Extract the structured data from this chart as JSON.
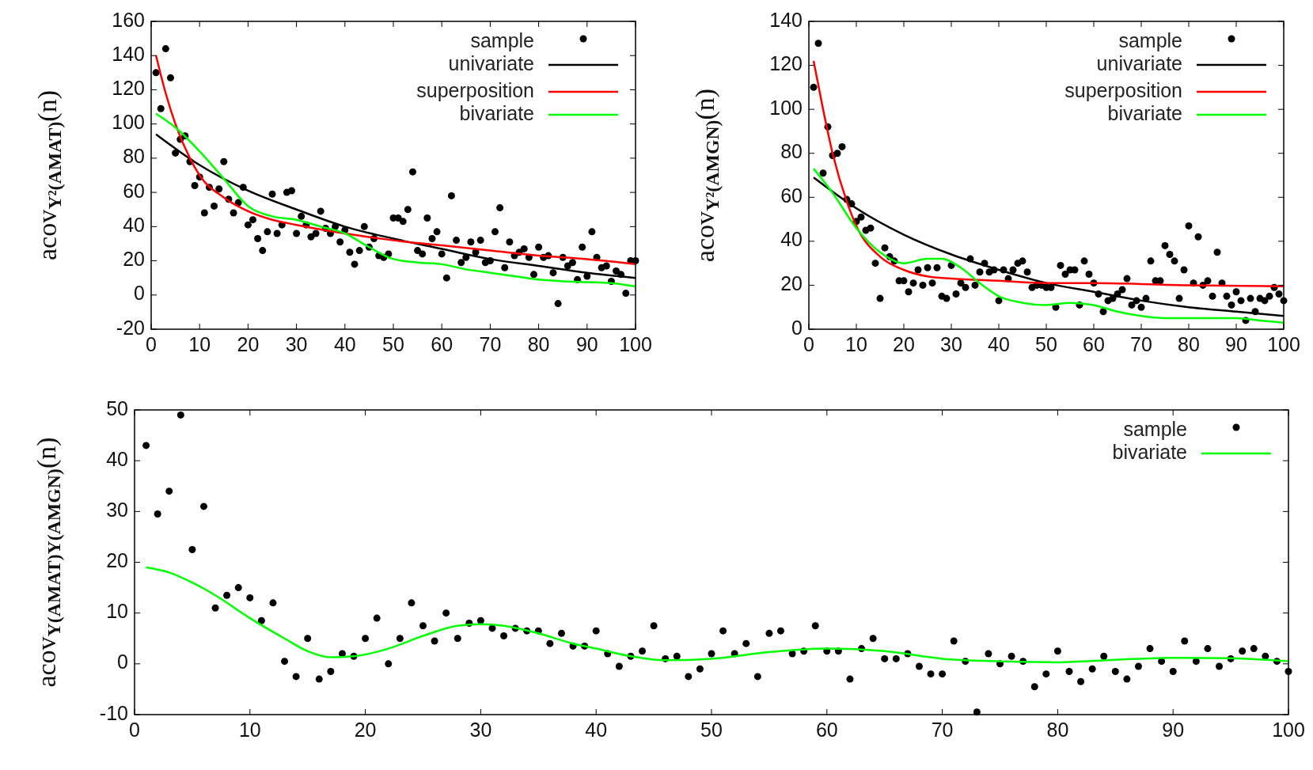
{
  "chart_data": [
    {
      "type": "line",
      "ylabel": "acov$_{Y²(AMAT)}$(n)",
      "xlim": [
        0,
        100
      ],
      "ylim": [
        -20,
        160
      ],
      "xticks": [
        0,
        10,
        20,
        30,
        40,
        50,
        60,
        70,
        80,
        90,
        100
      ],
      "yticks": [
        -20,
        0,
        20,
        40,
        60,
        80,
        100,
        120,
        140,
        160
      ],
      "legend": "top right",
      "grid": false,
      "x": [
        1,
        2,
        3,
        4,
        5,
        6,
        7,
        8,
        9,
        10,
        11,
        12,
        13,
        14,
        15,
        16,
        17,
        18,
        19,
        20,
        21,
        22,
        23,
        24,
        25,
        26,
        27,
        28,
        29,
        30,
        31,
        32,
        33,
        34,
        35,
        36,
        37,
        38,
        39,
        40,
        41,
        42,
        43,
        44,
        45,
        46,
        47,
        48,
        49,
        50,
        51,
        52,
        53,
        54,
        55,
        56,
        57,
        58,
        59,
        60,
        61,
        62,
        63,
        64,
        65,
        66,
        67,
        68,
        69,
        70,
        71,
        72,
        73,
        74,
        75,
        76,
        77,
        78,
        79,
        80,
        81,
        82,
        83,
        84,
        85,
        86,
        87,
        88,
        89,
        90,
        91,
        92,
        93,
        94,
        95,
        96,
        97,
        98,
        99,
        100
      ],
      "series": [
        {
          "name": "sample",
          "type": "scatter",
          "marker": "circle",
          "color": "#000000",
          "values": [
            130,
            109,
            144,
            127,
            83,
            91,
            93,
            78,
            64,
            69,
            48,
            63,
            52,
            62,
            78,
            56,
            48,
            54,
            63,
            41,
            44,
            33,
            26,
            37,
            59,
            36,
            41,
            60,
            61,
            36,
            46,
            41,
            34,
            36,
            49,
            39,
            36,
            40,
            31,
            38,
            25,
            18,
            26,
            40,
            28,
            33,
            23,
            22,
            24,
            45,
            45,
            43,
            50,
            72,
            26,
            24,
            45,
            33,
            37,
            24,
            10,
            58,
            32,
            19,
            22,
            31,
            25,
            32,
            19,
            20,
            37,
            51,
            16,
            31,
            23,
            25,
            27,
            22,
            12,
            28,
            22,
            23,
            13,
            -5,
            22,
            17,
            19,
            9,
            28,
            11,
            37,
            22,
            16,
            17,
            8,
            14,
            12,
            1,
            20,
            20
          ]
        },
        {
          "name": "univariate",
          "color": "#000000",
          "x": [
            1,
            10,
            20,
            30,
            40,
            50,
            60,
            70,
            80,
            90,
            100
          ],
          "values": [
            94,
            76,
            61,
            50,
            40,
            33,
            27,
            21,
            17,
            13,
            10
          ]
        },
        {
          "name": "superposition",
          "color": "#ff0000",
          "x": [
            1,
            3,
            5,
            8,
            10,
            15,
            20,
            25,
            30,
            40,
            50,
            60,
            70,
            80,
            90,
            100
          ],
          "values": [
            140,
            118,
            100,
            80,
            70,
            57,
            49,
            44,
            41,
            36,
            32,
            29,
            26,
            23,
            21,
            18
          ]
        },
        {
          "name": "bivariate",
          "color": "#00ff00",
          "x": [
            1,
            5,
            10,
            15,
            20,
            25,
            30,
            35,
            40,
            45,
            50,
            55,
            60,
            65,
            70,
            75,
            80,
            85,
            90,
            95,
            100
          ],
          "values": [
            106,
            98,
            84,
            68,
            52,
            46,
            44,
            40,
            36,
            28,
            21,
            19,
            18,
            15,
            13,
            11,
            9,
            8,
            7.5,
            7,
            5
          ]
        }
      ]
    },
    {
      "type": "line",
      "ylabel": "acov$_{Y²(AMGN)}$(n)",
      "xlim": [
        0,
        100
      ],
      "ylim": [
        0,
        140
      ],
      "xticks": [
        0,
        10,
        20,
        30,
        40,
        50,
        60,
        70,
        80,
        90,
        100
      ],
      "yticks": [
        0,
        20,
        40,
        60,
        80,
        100,
        120,
        140
      ],
      "legend": "top right",
      "grid": false,
      "x": [
        1,
        2,
        3,
        4,
        5,
        6,
        7,
        8,
        9,
        10,
        11,
        12,
        13,
        14,
        15,
        16,
        17,
        18,
        19,
        20,
        21,
        22,
        23,
        24,
        25,
        26,
        27,
        28,
        29,
        30,
        31,
        32,
        33,
        34,
        35,
        36,
        37,
        38,
        39,
        40,
        41,
        42,
        43,
        44,
        45,
        46,
        47,
        48,
        49,
        50,
        51,
        52,
        53,
        54,
        55,
        56,
        57,
        58,
        59,
        60,
        61,
        62,
        63,
        64,
        65,
        66,
        67,
        68,
        69,
        70,
        71,
        72,
        73,
        74,
        75,
        76,
        77,
        78,
        79,
        80,
        81,
        82,
        83,
        84,
        85,
        86,
        87,
        88,
        89,
        90,
        91,
        92,
        93,
        94,
        95,
        96,
        97,
        98,
        99,
        100
      ],
      "series": [
        {
          "name": "sample",
          "type": "scatter",
          "marker": "circle",
          "color": "#000000",
          "values": [
            110,
            130,
            71,
            92,
            79,
            80,
            83,
            59,
            57,
            49,
            51,
            45,
            46,
            30,
            14,
            37,
            33,
            31,
            22,
            22,
            17,
            21,
            27,
            20,
            28,
            21,
            28,
            15,
            14,
            29,
            16,
            21,
            19,
            32,
            20,
            26,
            30,
            26,
            27,
            13,
            27,
            23,
            27,
            30,
            31,
            26,
            19,
            20,
            20,
            19,
            19,
            10,
            29,
            25,
            27,
            27,
            11,
            31,
            25,
            21,
            16,
            8,
            13,
            14,
            16,
            18,
            23,
            11,
            13,
            10,
            14,
            31,
            22,
            22,
            38,
            34,
            31,
            14,
            27,
            47,
            21,
            42,
            20,
            22,
            15,
            35,
            21,
            15,
            11,
            17,
            13,
            4,
            14,
            8,
            14,
            13,
            15,
            19,
            16,
            13
          ]
        },
        {
          "name": "univariate",
          "color": "#000000",
          "x": [
            1,
            10,
            20,
            30,
            40,
            50,
            60,
            70,
            80,
            90,
            100
          ],
          "values": [
            69,
            55,
            43,
            34,
            27,
            21,
            17,
            13,
            10,
            8,
            6
          ]
        },
        {
          "name": "superposition",
          "color": "#ff0000",
          "x": [
            1,
            3,
            5,
            8,
            10,
            15,
            20,
            25,
            30,
            40,
            50,
            60,
            80,
            100
          ],
          "values": [
            122,
            100,
            80,
            58,
            47,
            33,
            27,
            24,
            23,
            22,
            21,
            21,
            20,
            19.5
          ]
        },
        {
          "name": "bivariate",
          "color": "#00ff00",
          "x": [
            1,
            5,
            10,
            15,
            20,
            25,
            28,
            32,
            36,
            40,
            45,
            50,
            55,
            60,
            65,
            70,
            75,
            80,
            85,
            90,
            95,
            100
          ],
          "values": [
            73,
            62,
            46,
            35,
            30,
            32,
            32,
            28,
            21,
            15,
            12,
            11,
            12,
            11,
            8,
            6,
            5,
            5,
            5,
            5,
            4,
            3
          ]
        }
      ]
    },
    {
      "type": "line",
      "ylabel": "acov$_{Y(AMAT)Y(AMGN)}$(n)",
      "xlim": [
        0,
        100
      ],
      "ylim": [
        -10,
        50
      ],
      "xticks": [
        0,
        10,
        20,
        30,
        40,
        50,
        60,
        70,
        80,
        90,
        100
      ],
      "yticks": [
        -10,
        0,
        10,
        20,
        30,
        40,
        50
      ],
      "legend": "top right",
      "grid": false,
      "x": [
        1,
        2,
        3,
        4,
        5,
        6,
        7,
        8,
        9,
        10,
        11,
        12,
        13,
        14,
        15,
        16,
        17,
        18,
        19,
        20,
        21,
        22,
        23,
        24,
        25,
        26,
        27,
        28,
        29,
        30,
        31,
        32,
        33,
        34,
        35,
        36,
        37,
        38,
        39,
        40,
        41,
        42,
        43,
        44,
        45,
        46,
        47,
        48,
        49,
        50,
        51,
        52,
        53,
        54,
        55,
        56,
        57,
        58,
        59,
        60,
        61,
        62,
        63,
        64,
        65,
        66,
        67,
        68,
        69,
        70,
        71,
        72,
        73,
        74,
        75,
        76,
        77,
        78,
        79,
        80,
        81,
        82,
        83,
        84,
        85,
        86,
        87,
        88,
        89,
        90,
        91,
        92,
        93,
        94,
        95,
        96,
        97,
        98,
        99,
        100
      ],
      "series": [
        {
          "name": "sample",
          "type": "scatter",
          "marker": "circle",
          "color": "#000000",
          "values": [
            43,
            29.5,
            34,
            49,
            22.5,
            31,
            11,
            13.5,
            15,
            13,
            8.5,
            12,
            0.5,
            -2.5,
            5,
            -3,
            -1.5,
            2,
            1.5,
            5,
            9,
            0,
            5,
            12,
            7.5,
            4.5,
            10,
            5,
            8,
            8.5,
            7,
            5.5,
            7,
            6.5,
            6.5,
            4,
            6,
            3.5,
            3.5,
            6.5,
            2,
            -0.5,
            1.5,
            2.5,
            7.5,
            1,
            1.5,
            -2.5,
            -1,
            2,
            6.5,
            2,
            4,
            -2.5,
            6,
            6.5,
            2,
            2.5,
            7.5,
            2.5,
            2.5,
            -3,
            3,
            5,
            1,
            1,
            2,
            -0.5,
            -2,
            -2,
            4.5,
            0.5,
            -9.5,
            2,
            0,
            1.5,
            0.5,
            -4.5,
            -2,
            2.5,
            -1.5,
            -3.5,
            -1,
            1.5,
            -1.5,
            -3,
            -0.5,
            3,
            0.5,
            -1.5,
            4.5,
            0.5,
            3,
            -0.5,
            1,
            2.5,
            3,
            1.5,
            0.5,
            -1.5
          ]
        },
        {
          "name": "bivariate",
          "color": "#00ff00",
          "x": [
            1,
            3,
            5,
            7,
            10,
            13,
            15,
            17,
            19,
            22,
            25,
            28,
            30,
            32,
            35,
            38,
            40,
            43,
            46,
            50,
            55,
            60,
            65,
            70,
            75,
            80,
            85,
            90,
            95,
            100
          ],
          "values": [
            19,
            18,
            16,
            13.5,
            9,
            5,
            2.5,
            1.3,
            1.5,
            3,
            5.5,
            7.5,
            7.8,
            7.5,
            6,
            4,
            3,
            1.5,
            0.7,
            1,
            2.3,
            3,
            2.5,
            1,
            0.5,
            0.3,
            0.8,
            1.2,
            1.1,
            0.5
          ]
        }
      ]
    }
  ]
}
